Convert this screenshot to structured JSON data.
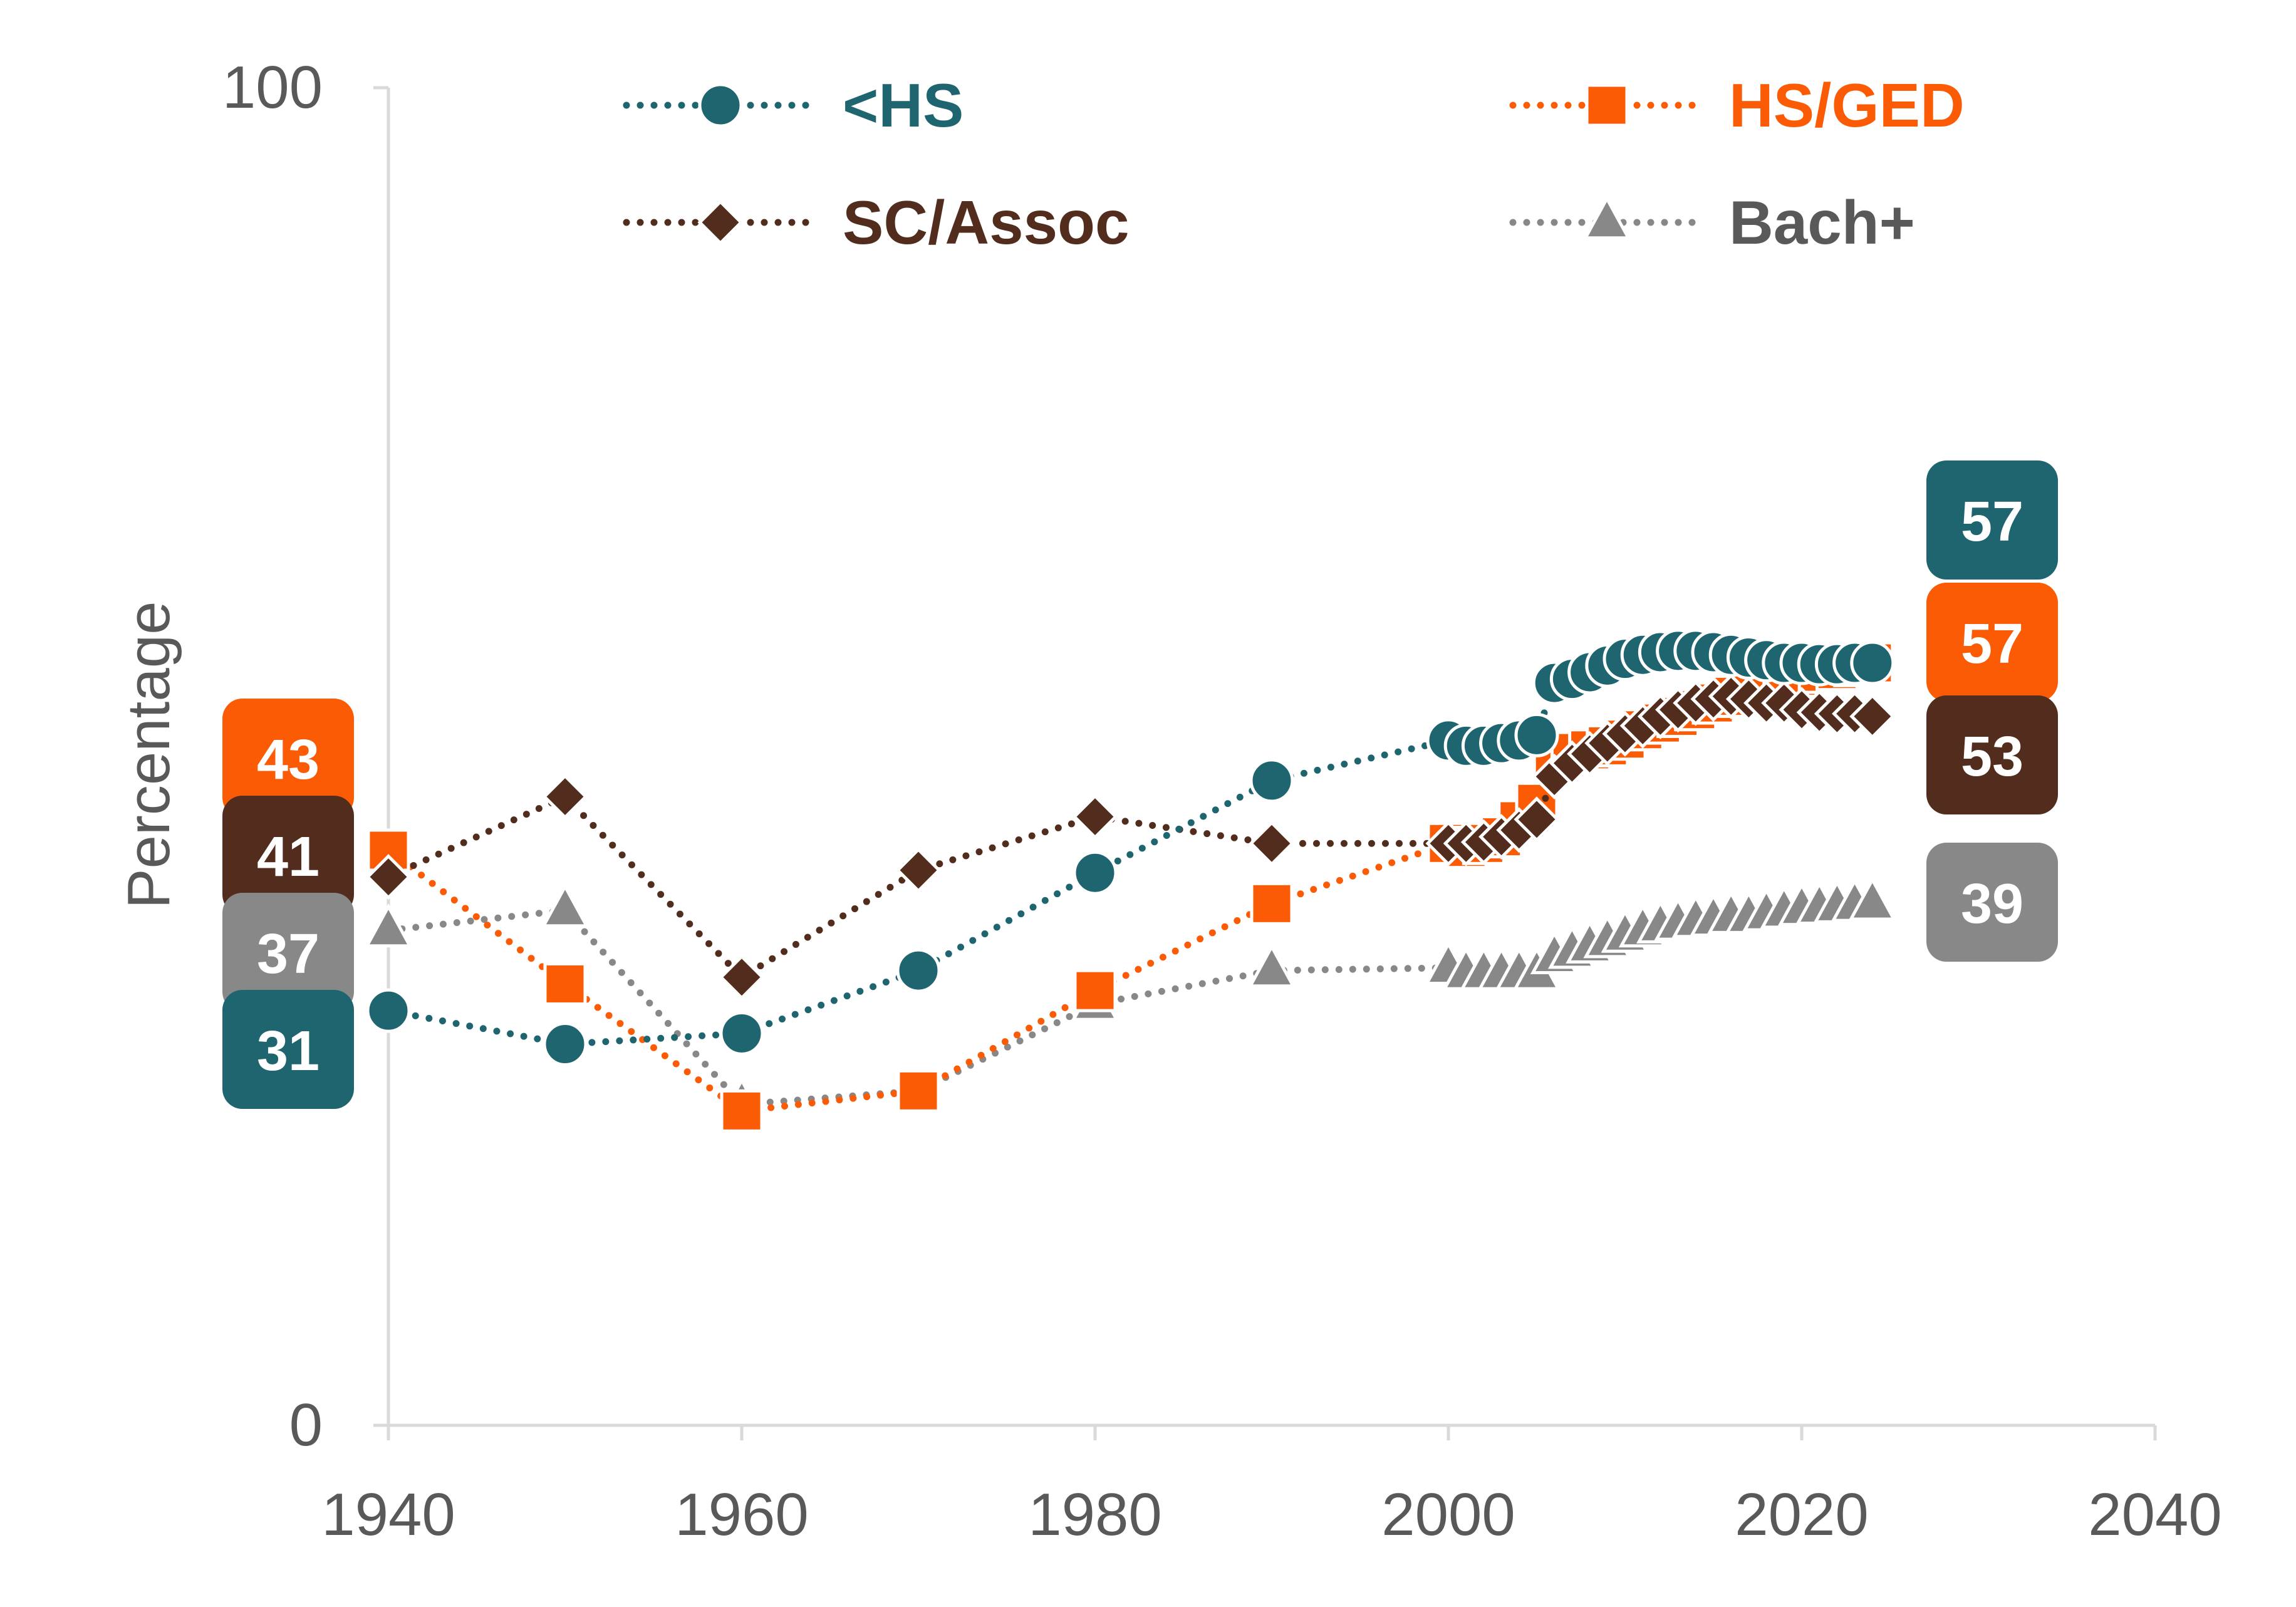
{
  "chart_data": {
    "type": "line",
    "ylabel": "Percentage",
    "xlabel": "",
    "xlim": [
      1940,
      2040
    ],
    "ylim": [
      0,
      100
    ],
    "x_ticks": [
      "1940",
      "1960",
      "1980",
      "2000",
      "2020",
      "2040"
    ],
    "y_ticks": [
      "0",
      "100"
    ],
    "grid": false,
    "legend_position": "top",
    "series": [
      {
        "name": "<HS",
        "color": "#1f6570",
        "marker": "circle",
        "points": [
          [
            1940,
            31
          ],
          [
            1950,
            28.5
          ],
          [
            1960,
            29.3
          ],
          [
            1970,
            34
          ],
          [
            1980,
            41.3
          ],
          [
            1990,
            48.2
          ],
          [
            2000,
            51.2
          ],
          [
            2001,
            50.8
          ],
          [
            2002,
            50.8
          ],
          [
            2003,
            51
          ],
          [
            2004,
            51.2
          ],
          [
            2005,
            51.6
          ],
          [
            2006,
            55.5
          ],
          [
            2007,
            55.8
          ],
          [
            2008,
            56.3
          ],
          [
            2009,
            56.8
          ],
          [
            2010,
            57.3
          ],
          [
            2011,
            57.6
          ],
          [
            2012,
            57.8
          ],
          [
            2013,
            57.9
          ],
          [
            2014,
            57.9
          ],
          [
            2015,
            57.8
          ],
          [
            2016,
            57.6
          ],
          [
            2017,
            57.4
          ],
          [
            2018,
            57.2
          ],
          [
            2019,
            57
          ],
          [
            2020,
            57
          ],
          [
            2021,
            56.9
          ],
          [
            2022,
            56.9
          ],
          [
            2023,
            57
          ],
          [
            2024,
            57
          ]
        ],
        "start_label": "31",
        "end_label": "57"
      },
      {
        "name": "HS/GED",
        "color": "#fc5b05",
        "marker": "square",
        "points": [
          [
            1940,
            43
          ],
          [
            1950,
            33
          ],
          [
            1960,
            23.5
          ],
          [
            1970,
            25
          ],
          [
            1980,
            32.5
          ],
          [
            1990,
            39
          ],
          [
            2000,
            43.5
          ],
          [
            2001,
            43.2
          ],
          [
            2002,
            43.5
          ],
          [
            2003,
            44
          ],
          [
            2004,
            45.2
          ],
          [
            2005,
            46.5
          ],
          [
            2006,
            50
          ],
          [
            2007,
            50.3
          ],
          [
            2008,
            50.5
          ],
          [
            2009,
            50.8
          ],
          [
            2010,
            51.3
          ],
          [
            2011,
            52
          ],
          [
            2012,
            52.5
          ],
          [
            2013,
            53
          ],
          [
            2014,
            53.5
          ],
          [
            2015,
            54
          ],
          [
            2016,
            54.5
          ],
          [
            2017,
            55
          ],
          [
            2018,
            55.3
          ],
          [
            2019,
            55.6
          ],
          [
            2020,
            56
          ],
          [
            2021,
            56.3
          ],
          [
            2022,
            56.5
          ],
          [
            2023,
            56.8
          ],
          [
            2024,
            57
          ]
        ],
        "start_label": "43",
        "end_label": "57"
      },
      {
        "name": "SC/Assoc",
        "color": "#522d1e",
        "marker": "diamond",
        "points": [
          [
            1940,
            41
          ],
          [
            1950,
            47
          ],
          [
            1960,
            33.5
          ],
          [
            1970,
            41.5
          ],
          [
            1980,
            45.5
          ],
          [
            1990,
            43.5
          ],
          [
            2000,
            43.5
          ],
          [
            2001,
            43.5
          ],
          [
            2002,
            43.6
          ],
          [
            2003,
            44
          ],
          [
            2004,
            44.5
          ],
          [
            2005,
            45.3
          ],
          [
            2006,
            48.5
          ],
          [
            2007,
            49.5
          ],
          [
            2008,
            50.2
          ],
          [
            2009,
            51
          ],
          [
            2010,
            51.7
          ],
          [
            2011,
            52.3
          ],
          [
            2012,
            53
          ],
          [
            2013,
            53.5
          ],
          [
            2014,
            54
          ],
          [
            2015,
            54.3
          ],
          [
            2016,
            54.5
          ],
          [
            2017,
            54.3
          ],
          [
            2018,
            54
          ],
          [
            2019,
            54
          ],
          [
            2020,
            53.5
          ],
          [
            2021,
            53.3
          ],
          [
            2022,
            53.2
          ],
          [
            2023,
            53.2
          ],
          [
            2024,
            53
          ]
        ],
        "start_label": "41",
        "end_label": "53"
      },
      {
        "name": "Bach+",
        "color": "#888888",
        "marker": "triangle",
        "points": [
          [
            1940,
            37
          ],
          [
            1950,
            38.5
          ],
          [
            1960,
            24
          ],
          [
            1970,
            25
          ],
          [
            1980,
            31.5
          ],
          [
            1990,
            34
          ],
          [
            2000,
            34.2
          ],
          [
            2001,
            33.8
          ],
          [
            2002,
            33.8
          ],
          [
            2003,
            33.8
          ],
          [
            2004,
            33.8
          ],
          [
            2005,
            33.8
          ],
          [
            2006,
            35
          ],
          [
            2007,
            35.4
          ],
          [
            2008,
            35.8
          ],
          [
            2009,
            36.2
          ],
          [
            2010,
            36.6
          ],
          [
            2011,
            37
          ],
          [
            2012,
            37.3
          ],
          [
            2013,
            37.5
          ],
          [
            2014,
            37.7
          ],
          [
            2015,
            37.8
          ],
          [
            2016,
            38
          ],
          [
            2017,
            38
          ],
          [
            2018,
            38.2
          ],
          [
            2019,
            38.4
          ],
          [
            2020,
            38.6
          ],
          [
            2021,
            38.7
          ],
          [
            2022,
            38.8
          ],
          [
            2023,
            38.9
          ],
          [
            2024,
            39
          ]
        ],
        "start_label": "37",
        "end_label": "39"
      }
    ]
  }
}
